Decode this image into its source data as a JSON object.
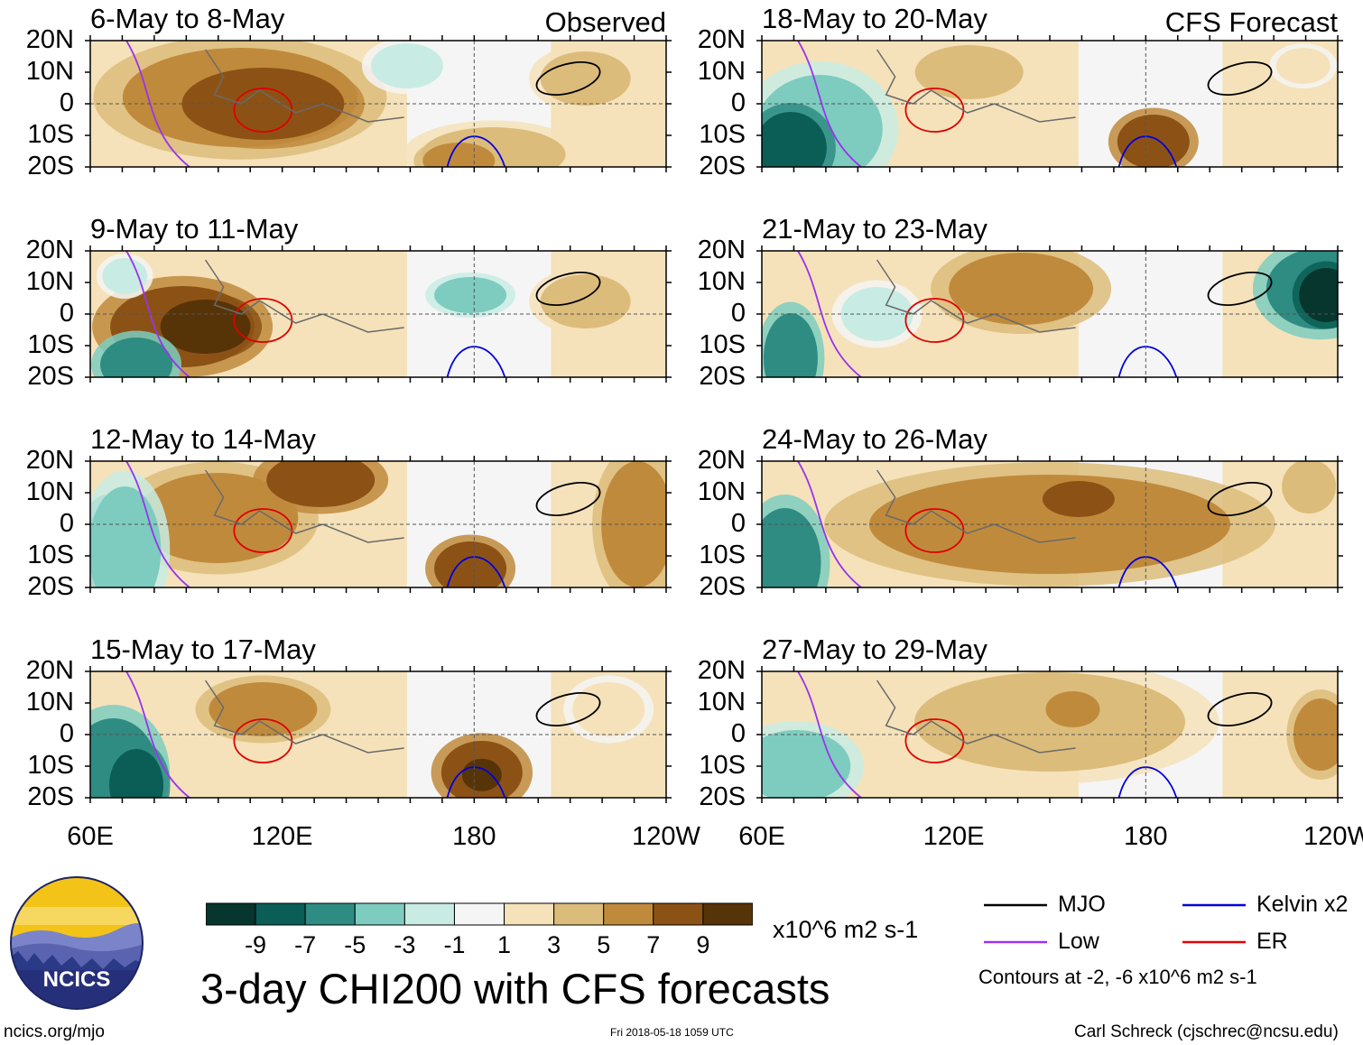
{
  "chart_data": {
    "type": "heatmap",
    "title": "3-day CHI200 with CFS forecasts",
    "units": "x10^6 m2 s-1",
    "x_axis": {
      "ticks": [
        "60E",
        "120E",
        "180",
        "120W"
      ]
    },
    "y_axis": {
      "ticks": [
        "20N",
        "10N",
        "0",
        "10S",
        "20S"
      ]
    },
    "colorbar": {
      "ticks": [
        "-9",
        "-7",
        "-5",
        "-3",
        "-1",
        "1",
        "3",
        "5",
        "7",
        "9"
      ],
      "colors": [
        "#06362e",
        "#0a5e55",
        "#2e8c82",
        "#7dccbf",
        "#c8ece4",
        "#f5f5f5",
        "#f5e2ba",
        "#dcbc7a",
        "#c08a3c",
        "#8c5215",
        "#573408"
      ]
    },
    "legend": {
      "items": [
        {
          "label": "MJO",
          "color": "#000000"
        },
        {
          "label": "Kelvin x2",
          "color": "#0000e0"
        },
        {
          "label": "Low",
          "color": "#9933ee"
        },
        {
          "label": "ER",
          "color": "#e00000"
        }
      ],
      "note": "Contours at -2, -6 x10^6 m2 s-1"
    },
    "columns": [
      {
        "tag": "Observed",
        "periods": [
          "6-May to 8-May",
          "9-May to 11-May",
          "12-May to 14-May",
          "15-May to 17-May"
        ]
      },
      {
        "tag": "CFS Forecast",
        "periods": [
          "18-May to 20-May",
          "21-May to 23-May",
          "24-May to 26-May",
          "27-May to 29-May"
        ]
      }
    ]
  },
  "logo": {
    "text": "NCICS"
  },
  "footer": {
    "left": "ncics.org/mjo",
    "center": "Fri 2018-05-18 1059 UTC",
    "right": "Carl Schreck (cjschrec@ncsu.edu)"
  }
}
